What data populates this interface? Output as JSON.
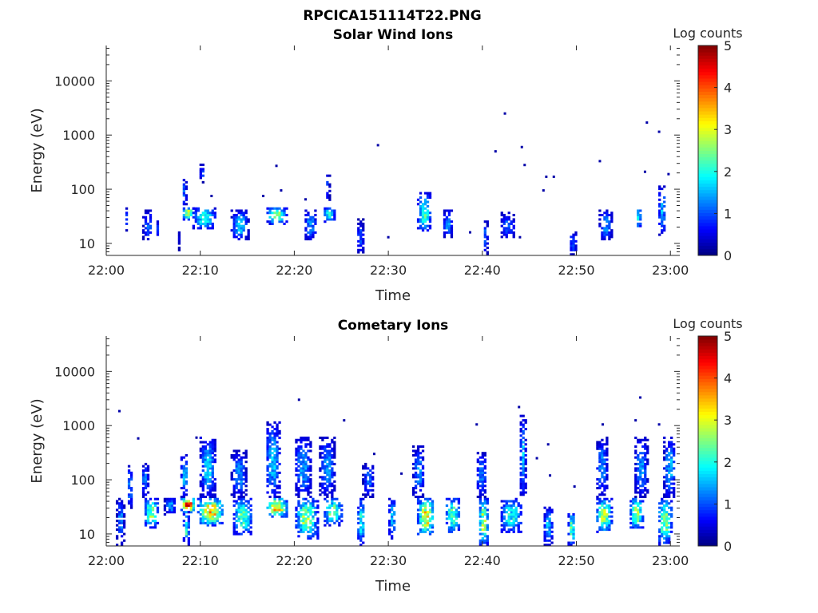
{
  "figure": {
    "title": "RPCICA151114T22.PNG"
  },
  "chart_data": [
    {
      "type": "heatmap",
      "title": "Solar Wind Ions",
      "xlabel": "Time",
      "ylabel": "Energy (eV)",
      "x_ticks": [
        "22:00",
        "22:10",
        "22:20",
        "22:30",
        "22:40",
        "22:50",
        "23:00"
      ],
      "xlim_minutes": [
        0,
        61
      ],
      "y_ticks": [
        "10",
        "100",
        "1000",
        "10000"
      ],
      "ylim": [
        6,
        45000
      ],
      "y_scale": "log",
      "colorbar": {
        "label": "Log counts",
        "ticks": [
          "0",
          "1",
          "2",
          "3",
          "4",
          "5"
        ],
        "range": [
          0,
          5
        ]
      },
      "clusters": [
        {
          "t": 2.1,
          "w": 0.3,
          "elo": 16,
          "ehi": 45,
          "peak": 1.0
        },
        {
          "t": 4.3,
          "w": 1.0,
          "elo": 11,
          "ehi": 40,
          "peak": 1.2
        },
        {
          "t": 5.3,
          "w": 0.4,
          "elo": 11,
          "ehi": 26,
          "peak": 0.9
        },
        {
          "t": 7.7,
          "w": 0.2,
          "elo": 7,
          "ehi": 16,
          "peak": 0.8
        },
        {
          "t": 8.6,
          "w": 1.2,
          "elo": 26,
          "ehi": 45,
          "peak": 3.0
        },
        {
          "t": 8.2,
          "w": 0.5,
          "elo": 45,
          "ehi": 150,
          "peak": 1.1
        },
        {
          "t": 10.3,
          "w": 2.6,
          "elo": 18,
          "ehi": 45,
          "peak": 1.9
        },
        {
          "t": 10.1,
          "w": 0.6,
          "elo": 130,
          "ehi": 280,
          "peak": 0.9
        },
        {
          "t": 14.1,
          "w": 1.8,
          "elo": 11,
          "ehi": 40,
          "peak": 1.6
        },
        {
          "t": 18.0,
          "w": 2.2,
          "elo": 22,
          "ehi": 45,
          "peak": 2.3
        },
        {
          "t": 21.6,
          "w": 1.4,
          "elo": 11,
          "ehi": 40,
          "peak": 1.3
        },
        {
          "t": 23.6,
          "w": 1.2,
          "elo": 24,
          "ehi": 45,
          "peak": 2.1
        },
        {
          "t": 23.4,
          "w": 0.5,
          "elo": 60,
          "ehi": 180,
          "peak": 1.0
        },
        {
          "t": 26.9,
          "w": 0.8,
          "elo": 6,
          "ehi": 26,
          "peak": 1.0
        },
        {
          "t": 33.7,
          "w": 1.4,
          "elo": 16,
          "ehi": 80,
          "peak": 2.2
        },
        {
          "t": 36.2,
          "w": 1.0,
          "elo": 12,
          "ehi": 40,
          "peak": 1.3
        },
        {
          "t": 40.2,
          "w": 0.5,
          "elo": 6,
          "ehi": 30,
          "peak": 1.0
        },
        {
          "t": 42.6,
          "w": 1.6,
          "elo": 12,
          "ehi": 35,
          "peak": 1.1
        },
        {
          "t": 49.5,
          "w": 0.8,
          "elo": 6,
          "ehi": 16,
          "peak": 1.1
        },
        {
          "t": 53.0,
          "w": 1.4,
          "elo": 11,
          "ehi": 40,
          "peak": 1.3
        },
        {
          "t": 56.5,
          "w": 0.6,
          "elo": 18,
          "ehi": 45,
          "peak": 1.8
        },
        {
          "t": 59.0,
          "w": 0.8,
          "elo": 14,
          "ehi": 110,
          "peak": 1.5
        }
      ],
      "dots": [
        {
          "t": 18.1,
          "e": 270
        },
        {
          "t": 28.9,
          "e": 650
        },
        {
          "t": 42.4,
          "e": 2500
        },
        {
          "t": 41.4,
          "e": 500
        },
        {
          "t": 44.2,
          "e": 600
        },
        {
          "t": 44.5,
          "e": 280
        },
        {
          "t": 46.8,
          "e": 170
        },
        {
          "t": 47.6,
          "e": 170
        },
        {
          "t": 46.5,
          "e": 95
        },
        {
          "t": 52.5,
          "e": 330
        },
        {
          "t": 57.5,
          "e": 1700
        },
        {
          "t": 58.8,
          "e": 1150
        },
        {
          "t": 57.3,
          "e": 210
        },
        {
          "t": 59.8,
          "e": 190
        },
        {
          "t": 16.7,
          "e": 75
        },
        {
          "t": 18.6,
          "e": 95
        },
        {
          "t": 21.2,
          "e": 65
        },
        {
          "t": 44.0,
          "e": 13
        },
        {
          "t": 30.0,
          "e": 13
        },
        {
          "t": 38.7,
          "e": 16
        },
        {
          "t": 11.2,
          "e": 75
        }
      ]
    },
    {
      "type": "heatmap",
      "title": "Cometary Ions",
      "xlabel": "Time",
      "ylabel": "Energy (eV)",
      "x_ticks": [
        "22:00",
        "22:10",
        "22:20",
        "22:30",
        "22:40",
        "22:50",
        "23:00"
      ],
      "xlim_minutes": [
        0,
        61
      ],
      "y_ticks": [
        "10",
        "100",
        "1000",
        "10000"
      ],
      "ylim": [
        6,
        45000
      ],
      "y_scale": "log",
      "colorbar": {
        "label": "Log counts",
        "ticks": [
          "0",
          "1",
          "2",
          "3",
          "4",
          "5"
        ],
        "range": [
          0,
          5
        ]
      },
      "clusters": [
        {
          "t": 1.4,
          "w": 0.8,
          "elo": 6,
          "ehi": 45,
          "peak": 1.2
        },
        {
          "t": 2.4,
          "w": 0.6,
          "elo": 28,
          "ehi": 180,
          "peak": 1.3
        },
        {
          "t": 4.7,
          "w": 1.6,
          "elo": 12,
          "ehi": 45,
          "peak": 2.4
        },
        {
          "t": 4.0,
          "w": 0.8,
          "elo": 45,
          "ehi": 200,
          "peak": 1.2
        },
        {
          "t": 6.7,
          "w": 1.2,
          "elo": 22,
          "ehi": 45,
          "peak": 1.4
        },
        {
          "t": 8.6,
          "w": 1.5,
          "elo": 24,
          "ehi": 45,
          "peak": 4.1
        },
        {
          "t": 8.2,
          "w": 0.8,
          "elo": 45,
          "ehi": 300,
          "peak": 1.5
        },
        {
          "t": 8.4,
          "w": 0.6,
          "elo": 6,
          "ehi": 24,
          "peak": 2.2
        },
        {
          "t": 11.0,
          "w": 2.8,
          "elo": 14,
          "ehi": 45,
          "peak": 3.4
        },
        {
          "t": 10.7,
          "w": 1.6,
          "elo": 45,
          "ehi": 600,
          "peak": 1.6
        },
        {
          "t": 14.4,
          "w": 2.0,
          "elo": 9,
          "ehi": 45,
          "peak": 2.3
        },
        {
          "t": 14.0,
          "w": 1.6,
          "elo": 45,
          "ehi": 320,
          "peak": 1.3
        },
        {
          "t": 18.0,
          "w": 2.4,
          "elo": 20,
          "ehi": 45,
          "peak": 3.3
        },
        {
          "t": 17.6,
          "w": 1.6,
          "elo": 45,
          "ehi": 1100,
          "peak": 1.6
        },
        {
          "t": 21.2,
          "w": 2.4,
          "elo": 8,
          "ehi": 45,
          "peak": 2.6
        },
        {
          "t": 20.8,
          "w": 1.8,
          "elo": 45,
          "ehi": 600,
          "peak": 1.4
        },
        {
          "t": 24.0,
          "w": 2.0,
          "elo": 14,
          "ehi": 45,
          "peak": 2.4
        },
        {
          "t": 23.4,
          "w": 1.6,
          "elo": 45,
          "ehi": 600,
          "peak": 1.3
        },
        {
          "t": 27.0,
          "w": 0.8,
          "elo": 6,
          "ehi": 45,
          "peak": 2.0
        },
        {
          "t": 27.8,
          "w": 1.2,
          "elo": 45,
          "ehi": 200,
          "peak": 1.1
        },
        {
          "t": 30.3,
          "w": 0.8,
          "elo": 8,
          "ehi": 45,
          "peak": 1.6
        },
        {
          "t": 33.9,
          "w": 1.8,
          "elo": 9,
          "ehi": 45,
          "peak": 3.1
        },
        {
          "t": 33.1,
          "w": 1.2,
          "elo": 45,
          "ehi": 400,
          "peak": 1.3
        },
        {
          "t": 36.7,
          "w": 1.6,
          "elo": 10,
          "ehi": 45,
          "peak": 2.4
        },
        {
          "t": 40.0,
          "w": 1.0,
          "elo": 6,
          "ehi": 45,
          "peak": 2.7
        },
        {
          "t": 39.8,
          "w": 1.2,
          "elo": 45,
          "ehi": 300,
          "peak": 1.2
        },
        {
          "t": 43.0,
          "w": 2.4,
          "elo": 10,
          "ehi": 45,
          "peak": 1.9
        },
        {
          "t": 44.2,
          "w": 0.6,
          "elo": 45,
          "ehi": 1500,
          "peak": 1.6
        },
        {
          "t": 46.9,
          "w": 1.0,
          "elo": 6,
          "ehi": 30,
          "peak": 1.5
        },
        {
          "t": 49.4,
          "w": 0.8,
          "elo": 6,
          "ehi": 24,
          "peak": 2.2
        },
        {
          "t": 52.8,
          "w": 1.8,
          "elo": 10,
          "ehi": 45,
          "peak": 2.6
        },
        {
          "t": 52.6,
          "w": 1.2,
          "elo": 45,
          "ehi": 600,
          "peak": 1.3
        },
        {
          "t": 56.3,
          "w": 1.4,
          "elo": 12,
          "ehi": 45,
          "peak": 2.7
        },
        {
          "t": 56.8,
          "w": 1.4,
          "elo": 45,
          "ehi": 600,
          "peak": 1.3
        },
        {
          "t": 59.3,
          "w": 1.6,
          "elo": 6,
          "ehi": 45,
          "peak": 2.4
        },
        {
          "t": 59.8,
          "w": 1.2,
          "elo": 45,
          "ehi": 600,
          "peak": 1.5
        }
      ],
      "dots": [
        {
          "t": 1.4,
          "e": 1850
        },
        {
          "t": 3.4,
          "e": 580
        },
        {
          "t": 9.6,
          "e": 600
        },
        {
          "t": 20.5,
          "e": 3000
        },
        {
          "t": 25.3,
          "e": 1250
        },
        {
          "t": 39.4,
          "e": 1050
        },
        {
          "t": 43.9,
          "e": 2200
        },
        {
          "t": 47.0,
          "e": 450
        },
        {
          "t": 52.8,
          "e": 1050
        },
        {
          "t": 56.8,
          "e": 3300
        },
        {
          "t": 56.3,
          "e": 1250
        },
        {
          "t": 58.8,
          "e": 1050
        },
        {
          "t": 45.8,
          "e": 250
        },
        {
          "t": 47.2,
          "e": 120
        },
        {
          "t": 49.8,
          "e": 75
        },
        {
          "t": 31.4,
          "e": 130
        },
        {
          "t": 28.5,
          "e": 300
        }
      ]
    }
  ]
}
